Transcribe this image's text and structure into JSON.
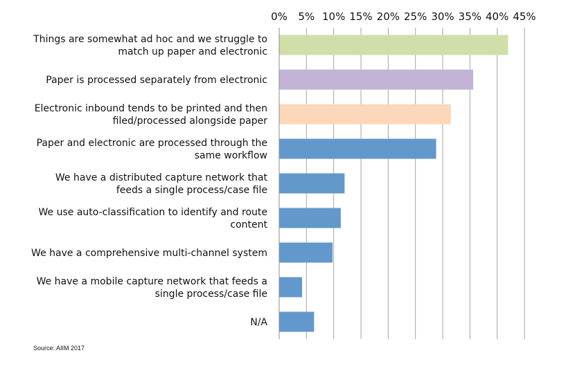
{
  "chart_data": {
    "type": "bar",
    "orientation": "horizontal",
    "categories": [
      [
        "Things are somewhat ad hoc and we struggle to",
        "match up paper and electronic"
      ],
      [
        "Paper is processed separately from electronic"
      ],
      [
        "Electronic inbound tends to be printed and then",
        "filed/processed alongside paper"
      ],
      [
        "Paper and electronic are processed through the",
        "same workflow"
      ],
      [
        "We have a distributed capture network that",
        "feeds a single process/case file"
      ],
      [
        "We use auto-classification to identify and route",
        "content"
      ],
      [
        "We have a comprehensive multi-channel system"
      ],
      [
        "We have a mobile capture network that feeds a",
        "single process/case file"
      ],
      [
        "N/A"
      ]
    ],
    "values": [
      42.0,
      35.6,
      31.5,
      28.8,
      12.0,
      11.3,
      9.8,
      4.2,
      6.4
    ],
    "colors": [
      "#d0deaa",
      "#c3b3d6",
      "#fcd7b9",
      "#6398cc",
      "#6398cc",
      "#6398cc",
      "#6398cc",
      "#6398cc",
      "#6398cc"
    ],
    "xlim": [
      0,
      45
    ],
    "ticks": [
      "0%",
      "5%",
      "10%",
      "15%",
      "20%",
      "25%",
      "30%",
      "35%",
      "40%",
      "45%"
    ],
    "tick_values": [
      0,
      5,
      10,
      15,
      20,
      25,
      30,
      35,
      40,
      45
    ],
    "axis_position": "top",
    "grid": true,
    "gridline_color": "#a6a6a6"
  },
  "source": "Source: AIIM 2017"
}
